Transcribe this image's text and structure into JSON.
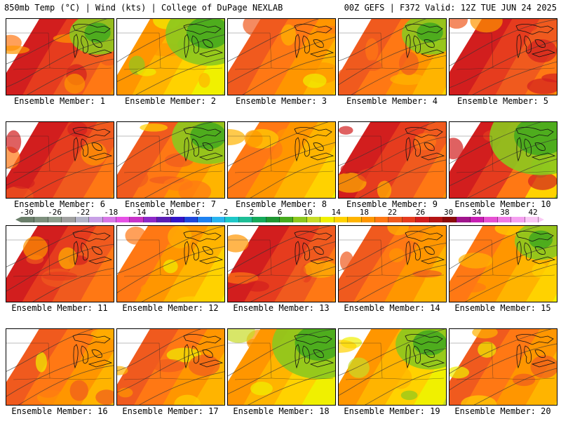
{
  "header": {
    "left": "850mb Temp (°C) | Wind (kts) | College of DuPage NEXLAB",
    "right": "00Z GEFS | F372 Valid: 12Z TUE JUN 24 2025"
  },
  "colorbar": {
    "ticks": [
      "-30",
      "-26",
      "-22",
      "-18",
      "-14",
      "-10",
      "-6",
      "-2",
      "2",
      "6",
      "10",
      "14",
      "18",
      "22",
      "26",
      "30",
      "34",
      "38",
      "42"
    ],
    "colors": [
      "#6b7f6b",
      "#7d8f7d",
      "#8e9e8e",
      "#a0a0a0",
      "#b4b4c8",
      "#c8a0e6",
      "#d778e6",
      "#e650e6",
      "#c832c8",
      "#8c28c8",
      "#5a1eb4",
      "#3214c8",
      "#1e46dc",
      "#1e82f0",
      "#28b4f0",
      "#1ec8c8",
      "#1ebe96",
      "#14aa5a",
      "#1e9632",
      "#46aa1e",
      "#8cc81e",
      "#c8dc28",
      "#f0f000",
      "#ffd200",
      "#ffb400",
      "#ff9600",
      "#ff7814",
      "#f05a1e",
      "#e63c1e",
      "#d21e1e",
      "#b41414",
      "#8c0a0a",
      "#a0148c",
      "#c81eb4",
      "#e650d2",
      "#f07ae6",
      "#f5a0f0",
      "#fac8f5"
    ]
  },
  "members": [
    {
      "label": "Ensemble Member: 1",
      "scheme": "hot",
      "green": 0.25
    },
    {
      "label": "Ensemble Member: 2",
      "scheme": "cool",
      "green": 0.6
    },
    {
      "label": "Ensemble Member: 3",
      "scheme": "warm",
      "green": 0.0
    },
    {
      "label": "Ensemble Member: 4",
      "scheme": "warm",
      "green": 0.25
    },
    {
      "label": "Ensemble Member: 5",
      "scheme": "hot",
      "green": 0.0
    },
    {
      "label": "Ensemble Member: 6",
      "scheme": "hot",
      "green": 0.0
    },
    {
      "label": "Ensemble Member: 7",
      "scheme": "warm",
      "green": 0.45
    },
    {
      "label": "Ensemble Member: 8",
      "scheme": "mild",
      "green": 0.0
    },
    {
      "label": "Ensemble Member: 9",
      "scheme": "hot",
      "green": 0.0
    },
    {
      "label": "Ensemble Member: 10",
      "scheme": "split",
      "green": 0.8
    },
    {
      "label": "Ensemble Member: 11",
      "scheme": "hot",
      "green": 0.0
    },
    {
      "label": "Ensemble Member: 12",
      "scheme": "mild",
      "green": 0.0
    },
    {
      "label": "Ensemble Member: 13",
      "scheme": "hot",
      "green": 0.0
    },
    {
      "label": "Ensemble Member: 14",
      "scheme": "warm",
      "green": 0.0
    },
    {
      "label": "Ensemble Member: 15",
      "scheme": "mild",
      "green": 0.2
    },
    {
      "label": "Ensemble Member: 16",
      "scheme": "warm",
      "green": 0.0
    },
    {
      "label": "Ensemble Member: 17",
      "scheme": "warm",
      "green": 0.0
    },
    {
      "label": "Ensemble Member: 18",
      "scheme": "cool",
      "green": 0.7
    },
    {
      "label": "Ensemble Member: 19",
      "scheme": "cool",
      "green": 0.4
    },
    {
      "label": "Ensemble Member: 20",
      "scheme": "warm",
      "green": 0.0
    }
  ]
}
